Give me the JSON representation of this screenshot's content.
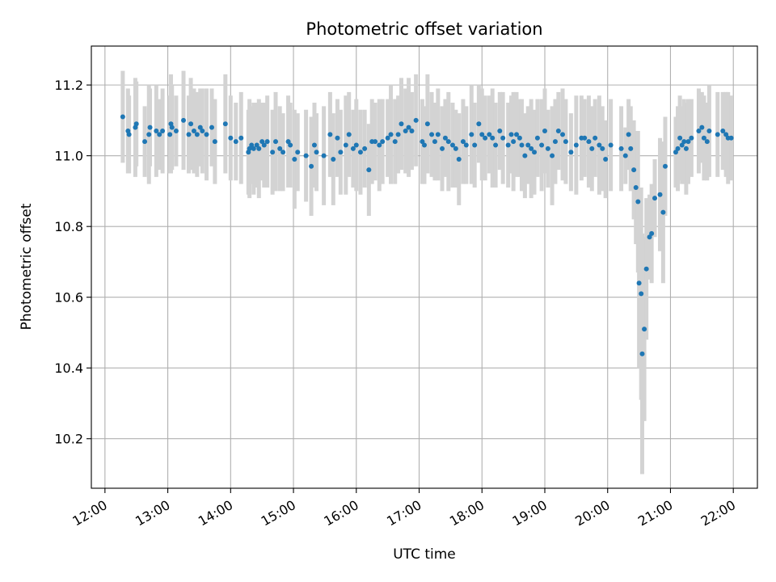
{
  "chart_data": {
    "type": "scatter",
    "title": "Photometric offset variation",
    "xlabel": "UTC time",
    "ylabel": "Photometric offset",
    "xlim": [
      "11:47",
      "22:23"
    ],
    "ylim": [
      10.06,
      11.31
    ],
    "x_ticks": [
      "12:00",
      "13:00",
      "14:00",
      "15:00",
      "16:00",
      "17:00",
      "18:00",
      "19:00",
      "20:00",
      "21:00",
      "22:00"
    ],
    "y_ticks": [
      "10.2",
      "10.4",
      "10.6",
      "10.8",
      "11.0",
      "11.2"
    ],
    "grid": true,
    "colors": {
      "points": "#1f77b4",
      "errorbars": "#d3d3d3"
    },
    "series": [
      {
        "x": [
          "12:17",
          "12:22",
          "12:23",
          "12:29",
          "12:30",
          "12:38",
          "12:42",
          "12:43",
          "12:49",
          "12:52",
          "12:55",
          "13:02",
          "13:03",
          "13:04",
          "13:08",
          "13:15",
          "13:20",
          "13:22",
          "13:25",
          "13:28",
          "13:31",
          "13:33",
          "13:37",
          "13:42",
          "13:45",
          "13:55",
          "14:00",
          "14:05",
          "14:10",
          "14:17",
          "14:18",
          "14:20",
          "14:22",
          "14:25",
          "14:27",
          "14:30",
          "14:32",
          "14:35",
          "14:40",
          "14:43",
          "14:47",
          "14:50",
          "14:55",
          "14:57",
          "15:01",
          "15:04",
          "15:12",
          "15:17",
          "15:20",
          "15:22",
          "15:29",
          "15:35",
          "15:38",
          "15:42",
          "15:45",
          "15:50",
          "15:53",
          "15:57",
          "16:00",
          "16:04",
          "16:08",
          "16:12",
          "16:15",
          "16:18",
          "16:22",
          "16:25",
          "16:30",
          "16:33",
          "16:37",
          "16:40",
          "16:43",
          "16:47",
          "16:50",
          "16:53",
          "16:57",
          "17:03",
          "17:05",
          "17:08",
          "17:12",
          "17:15",
          "17:18",
          "17:22",
          "17:25",
          "17:28",
          "17:32",
          "17:35",
          "17:38",
          "17:42",
          "17:45",
          "17:50",
          "17:53",
          "17:57",
          "18:00",
          "18:03",
          "18:07",
          "18:10",
          "18:13",
          "18:17",
          "18:20",
          "18:25",
          "18:28",
          "18:30",
          "18:33",
          "18:36",
          "18:38",
          "18:41",
          "18:44",
          "18:47",
          "18:50",
          "18:53",
          "18:57",
          "19:00",
          "19:03",
          "19:07",
          "19:10",
          "19:13",
          "19:17",
          "19:20",
          "19:25",
          "19:30",
          "19:35",
          "19:38",
          "19:42",
          "19:45",
          "19:48",
          "19:52",
          "19:55",
          "19:58",
          "20:03",
          "20:13",
          "20:17",
          "20:20",
          "20:22",
          "20:25",
          "20:27",
          "20:29",
          "20:30",
          "20:32",
          "20:33",
          "20:35",
          "20:37",
          "20:40",
          "20:42",
          "20:45",
          "20:50",
          "20:53",
          "20:55",
          "21:05",
          "21:07",
          "21:09",
          "21:11",
          "21:13",
          "21:15",
          "21:17",
          "21:20",
          "21:27",
          "21:30",
          "21:32",
          "21:35",
          "21:37",
          "21:45",
          "21:50",
          "21:53",
          "21:55",
          "21:58"
        ],
        "y": [
          11.11,
          11.07,
          11.06,
          11.08,
          11.09,
          11.04,
          11.06,
          11.08,
          11.07,
          11.06,
          11.07,
          11.06,
          11.09,
          11.08,
          11.07,
          11.1,
          11.06,
          11.09,
          11.07,
          11.06,
          11.08,
          11.07,
          11.06,
          11.08,
          11.04,
          11.09,
          11.05,
          11.04,
          11.05,
          11.01,
          11.02,
          11.03,
          11.02,
          11.03,
          11.02,
          11.04,
          11.03,
          11.04,
          11.01,
          11.04,
          11.02,
          11.01,
          11.04,
          11.03,
          10.99,
          11.01,
          11.0,
          10.97,
          11.03,
          11.01,
          11.0,
          11.06,
          10.99,
          11.05,
          11.01,
          11.03,
          11.06,
          11.02,
          11.03,
          11.01,
          11.02,
          10.96,
          11.04,
          11.04,
          11.03,
          11.04,
          11.05,
          11.06,
          11.04,
          11.06,
          11.09,
          11.07,
          11.08,
          11.07,
          11.1,
          11.04,
          11.03,
          11.09,
          11.06,
          11.04,
          11.06,
          11.02,
          11.05,
          11.04,
          11.03,
          11.02,
          10.99,
          11.04,
          11.03,
          11.06,
          11.03,
          11.09,
          11.06,
          11.05,
          11.06,
          11.05,
          11.03,
          11.07,
          11.05,
          11.03,
          11.06,
          11.04,
          11.06,
          11.05,
          11.03,
          11.0,
          11.03,
          11.02,
          11.01,
          11.05,
          11.03,
          11.07,
          11.02,
          11.0,
          11.04,
          11.07,
          11.06,
          11.04,
          11.01,
          11.03,
          11.05,
          11.05,
          11.04,
          11.02,
          11.05,
          11.03,
          11.02,
          10.99,
          11.03,
          11.02,
          11.0,
          11.06,
          11.02,
          10.96,
          10.91,
          10.87,
          10.64,
          10.61,
          10.44,
          10.51,
          10.68,
          10.77,
          10.78,
          10.88,
          10.89,
          10.84,
          10.97,
          11.01,
          11.02,
          11.05,
          11.03,
          11.04,
          11.02,
          11.04,
          11.05,
          11.07,
          11.08,
          11.05,
          11.04,
          11.07,
          11.06,
          11.07,
          11.06,
          11.05,
          11.05
        ],
        "yerr": [
          0.13,
          0.12,
          0.11,
          0.14,
          0.12,
          0.1,
          0.14,
          0.11,
          0.13,
          0.1,
          0.12,
          0.11,
          0.14,
          0.12,
          0.1,
          0.14,
          0.11,
          0.13,
          0.12,
          0.12,
          0.11,
          0.12,
          0.13,
          0.11,
          0.12,
          0.14,
          0.12,
          0.11,
          0.13,
          0.12,
          0.14,
          0.11,
          0.13,
          0.12,
          0.14,
          0.11,
          0.12,
          0.13,
          0.12,
          0.14,
          0.12,
          0.11,
          0.13,
          0.12,
          0.14,
          0.11,
          0.13,
          0.14,
          0.12,
          0.11,
          0.14,
          0.12,
          0.13,
          0.11,
          0.12,
          0.14,
          0.12,
          0.11,
          0.13,
          0.12,
          0.11,
          0.13,
          0.12,
          0.11,
          0.13,
          0.12,
          0.11,
          0.14,
          0.12,
          0.11,
          0.13,
          0.12,
          0.14,
          0.11,
          0.13,
          0.12,
          0.11,
          0.14,
          0.12,
          0.11,
          0.13,
          0.12,
          0.11,
          0.14,
          0.12,
          0.11,
          0.13,
          0.12,
          0.11,
          0.14,
          0.12,
          0.11,
          0.13,
          0.12,
          0.11,
          0.14,
          0.12,
          0.11,
          0.13,
          0.12,
          0.11,
          0.14,
          0.12,
          0.11,
          0.13,
          0.12,
          0.11,
          0.14,
          0.12,
          0.11,
          0.13,
          0.12,
          0.11,
          0.14,
          0.12,
          0.11,
          0.13,
          0.12,
          0.11,
          0.14,
          0.12,
          0.11,
          0.13,
          0.12,
          0.11,
          0.14,
          0.12,
          0.11,
          0.13,
          0.12,
          0.08,
          0.1,
          0.12,
          0.14,
          0.16,
          0.2,
          0.24,
          0.3,
          0.34,
          0.26,
          0.2,
          0.12,
          0.14,
          0.11,
          0.16,
          0.2,
          0.14,
          0.1,
          0.12,
          0.12,
          0.11,
          0.12,
          0.13,
          0.12,
          0.11,
          0.12,
          0.1,
          0.12,
          0.11,
          0.13,
          0.12,
          0.11,
          0.12,
          0.13,
          0.12
        ]
      }
    ]
  }
}
